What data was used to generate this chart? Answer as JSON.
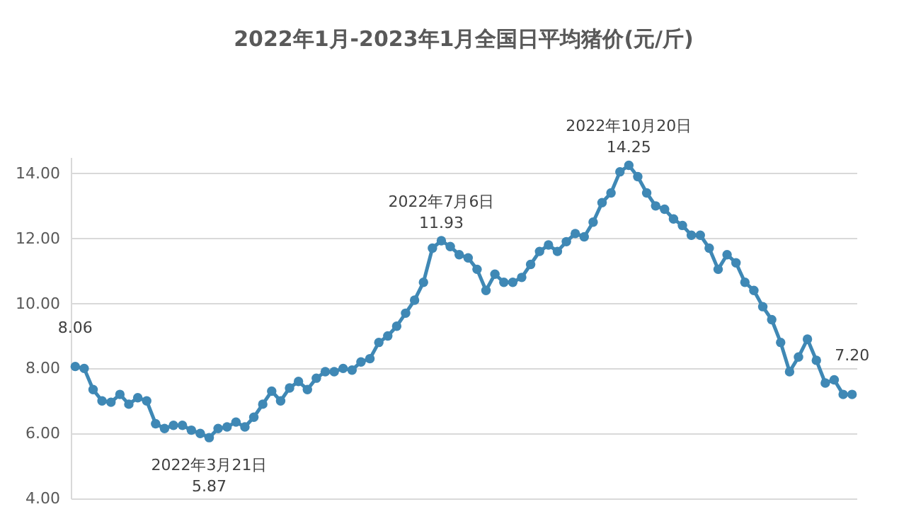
{
  "chart_data": {
    "type": "line",
    "title": "2022年1月-2023年1月全国日平均猪价(元/斤)",
    "categories": [
      null,
      null,
      null,
      null,
      null,
      null,
      null,
      null,
      null,
      null,
      null,
      null,
      null,
      null,
      null,
      null,
      null,
      null,
      null,
      null,
      null,
      null,
      null,
      null,
      null,
      null,
      null,
      null,
      null,
      null,
      null,
      null,
      null,
      null,
      null,
      null,
      null,
      null,
      null,
      null,
      null,
      null,
      null,
      null,
      null,
      null,
      null,
      null,
      null,
      null,
      null,
      null,
      null,
      null,
      null,
      null,
      null,
      null,
      null,
      null,
      null,
      null,
      null,
      null,
      null,
      null,
      null,
      null,
      null,
      null,
      null,
      null,
      null,
      null,
      null,
      null,
      null,
      null,
      null,
      null,
      null,
      null,
      null,
      null,
      null,
      null,
      null,
      null
    ],
    "series": [
      {
        "color": "#3f88b5",
        "values": [
          8.06,
          8.0,
          7.35,
          7.0,
          6.96,
          7.2,
          6.9,
          7.1,
          7.0,
          6.3,
          6.15,
          6.25,
          6.25,
          6.1,
          6.0,
          5.87,
          6.15,
          6.2,
          6.35,
          6.2,
          6.5,
          6.9,
          7.3,
          7.0,
          7.4,
          7.6,
          7.35,
          7.7,
          7.9,
          7.9,
          8.0,
          7.95,
          8.2,
          8.3,
          8.8,
          9.0,
          9.3,
          9.7,
          10.1,
          10.65,
          11.7,
          11.93,
          11.75,
          11.5,
          11.4,
          11.05,
          10.4,
          10.9,
          10.65,
          10.65,
          10.8,
          11.2,
          11.6,
          11.8,
          11.6,
          11.9,
          12.15,
          12.05,
          12.5,
          13.1,
          13.4,
          14.05,
          14.25,
          13.9,
          13.4,
          13.0,
          12.9,
          12.6,
          12.4,
          12.1,
          12.1,
          11.7,
          11.05,
          11.5,
          11.25,
          10.65,
          10.4,
          9.9,
          9.5,
          8.8,
          7.9,
          8.35,
          8.9,
          8.25,
          7.55,
          7.65,
          7.2,
          7.2
        ],
        "value_labels": [
          "8.06",
          null,
          null,
          null,
          null,
          null,
          null,
          null,
          null,
          null,
          null,
          null,
          null,
          null,
          null,
          "2022年3月21日\n5.87",
          null,
          null,
          null,
          null,
          null,
          null,
          null,
          null,
          null,
          null,
          null,
          null,
          null,
          null,
          null,
          null,
          null,
          null,
          null,
          null,
          null,
          null,
          null,
          null,
          null,
          "2022年7月6日\n11.93",
          null,
          null,
          null,
          null,
          null,
          null,
          null,
          null,
          null,
          null,
          null,
          null,
          null,
          null,
          null,
          null,
          null,
          null,
          null,
          null,
          "2022年10月20日\n14.25",
          null,
          null,
          null,
          null,
          null,
          null,
          null,
          null,
          null,
          null,
          null,
          null,
          null,
          null,
          null,
          null,
          null,
          null,
          null,
          null,
          null,
          null,
          null,
          null,
          "7.20"
        ]
      }
    ],
    "ylim": [
      4,
      14.5
    ],
    "yticks": [
      {
        "value": 4,
        "label": "4.00"
      },
      {
        "value": 6,
        "label": "6.00"
      },
      {
        "value": 8,
        "label": "8.00"
      },
      {
        "value": 10,
        "label": "10.00"
      },
      {
        "value": 12,
        "label": "12.00"
      },
      {
        "value": 14,
        "label": "14.00"
      }
    ],
    "grid": "y",
    "marker": "circle",
    "line_style": "solid"
  }
}
